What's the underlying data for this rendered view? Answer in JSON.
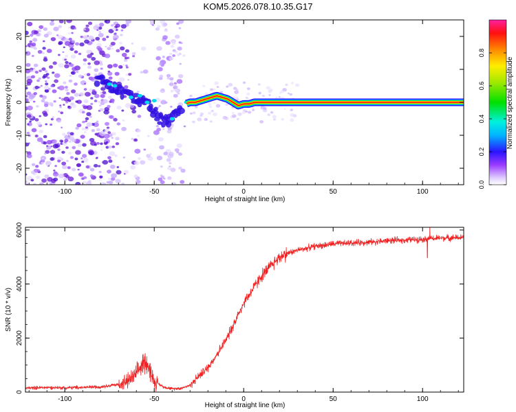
{
  "title": "KOM5.2026.078.10.35.G17",
  "chart_data": [
    {
      "type": "heatmap",
      "xlabel": "Height of straight line (km)",
      "ylabel": "Frequency (Hz)",
      "xlim": [
        -122,
        123
      ],
      "ylim": [
        -25,
        25
      ],
      "x_ticks": [
        -100,
        -50,
        0,
        50,
        100
      ],
      "y_ticks": [
        20,
        10,
        0,
        -10,
        -20
      ],
      "colorbar": {
        "label": "Normalized spectral amplitude",
        "range": [
          0,
          1
        ],
        "ticks": [
          0.0,
          0.2,
          0.4,
          0.6,
          0.8
        ]
      },
      "ridge": {
        "x": [
          -80,
          -75,
          -70,
          -65,
          -60,
          -55,
          -50,
          -45,
          -40,
          -35,
          -30,
          -27,
          -24,
          -21,
          -18,
          -15,
          -12,
          -9,
          -6,
          -3,
          0,
          3,
          6,
          10,
          30,
          60,
          90,
          123
        ],
        "y": [
          7,
          5,
          4,
          2,
          1,
          0,
          -3,
          -6,
          -5,
          -1,
          0,
          0,
          0.5,
          1,
          1.5,
          2,
          1.5,
          1,
          0,
          -1,
          -0.5,
          -0.5,
          0,
          0,
          0,
          0,
          0,
          0
        ]
      }
    },
    {
      "type": "line",
      "xlabel": "Height of straight line (km)",
      "ylabel": "SNR (10 * v/v)",
      "xlim": [
        -122,
        123
      ],
      "ylim": [
        0,
        6100
      ],
      "x_ticks": [
        -100,
        -50,
        0,
        50,
        100
      ],
      "y_ticks": [
        0,
        2000,
        4000,
        6000
      ],
      "color": "#ee2222",
      "series": [
        {
          "x": [
            -122,
            -110,
            -100,
            -90,
            -80,
            -70,
            -65,
            -60,
            -58,
            -55,
            -53,
            -50,
            -45,
            -40,
            -35,
            -30,
            -25,
            -20,
            -15,
            -10,
            -5,
            0,
            5,
            10,
            15,
            20,
            25,
            30,
            40,
            50,
            60,
            70,
            80,
            90,
            100,
            110,
            123
          ],
          "values": [
            150,
            170,
            160,
            170,
            200,
            280,
            400,
            650,
            900,
            1200,
            900,
            400,
            200,
            120,
            150,
            250,
            600,
            900,
            1400,
            1900,
            2600,
            3300,
            3800,
            4300,
            4650,
            5000,
            5150,
            5250,
            5400,
            5480,
            5520,
            5550,
            5600,
            5630,
            5660,
            5700,
            5720
          ]
        }
      ]
    }
  ]
}
